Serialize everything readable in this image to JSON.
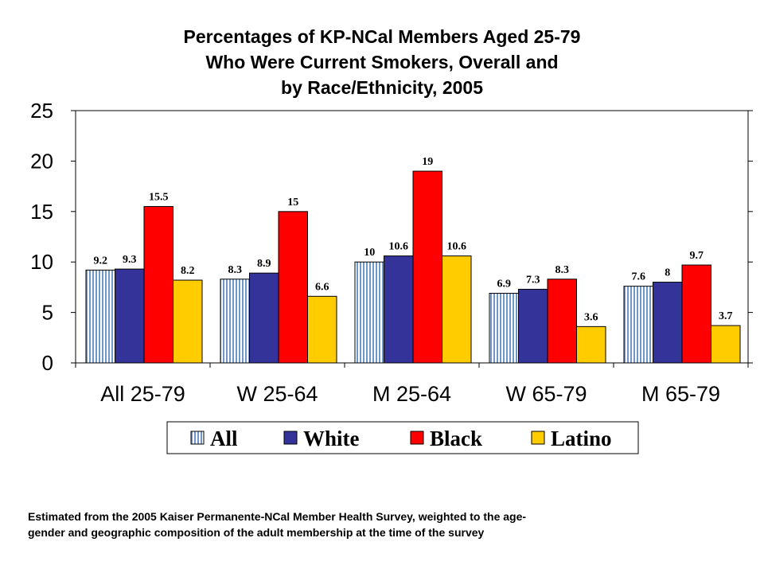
{
  "chart_data": {
    "type": "bar",
    "title_lines": [
      "Percentages of KP-NCal Members Aged 25-79",
      "Who Were Current Smokers, Overall and",
      "by Race/Ethnicity, 2005"
    ],
    "categories": [
      "All 25-79",
      "W 25-64",
      "M 25-64",
      "W 65-79",
      "M 65-79"
    ],
    "series": [
      {
        "name": "All",
        "color": "#a9c4e3",
        "pattern": "vertical-stripes",
        "values": [
          9.2,
          8.3,
          10,
          6.9,
          7.6
        ],
        "labels": [
          "9.2",
          "8.3",
          "10",
          "6.9",
          "7.6"
        ]
      },
      {
        "name": "White",
        "color": "#333399",
        "values": [
          9.3,
          8.9,
          10.6,
          7.3,
          8
        ],
        "labels": [
          "9.3",
          "8.9",
          "10.6",
          "7.3",
          "8"
        ]
      },
      {
        "name": "Black",
        "color": "#ff0000",
        "values": [
          15.5,
          15,
          19,
          8.3,
          9.7
        ],
        "labels": [
          "15.5",
          "15",
          "19",
          "8.3",
          "9.7"
        ]
      },
      {
        "name": "Latino",
        "color": "#ffcc00",
        "values": [
          8.2,
          6.6,
          10.6,
          3.6,
          3.7
        ],
        "labels": [
          "8.2",
          "6.6",
          "10.6",
          "3.6",
          "3.7"
        ]
      }
    ],
    "ylim": [
      0,
      25
    ],
    "yticks": [
      "0",
      "5",
      "10",
      "15",
      "20",
      "25"
    ],
    "grid": false,
    "legend_position": "bottom"
  },
  "footnote": {
    "line1": "Estimated from the 2005 Kaiser Permanente-NCal Member Health Survey, weighted to the age-",
    "line2": "gender and geographic composition of the adult membership at the time of the survey"
  }
}
